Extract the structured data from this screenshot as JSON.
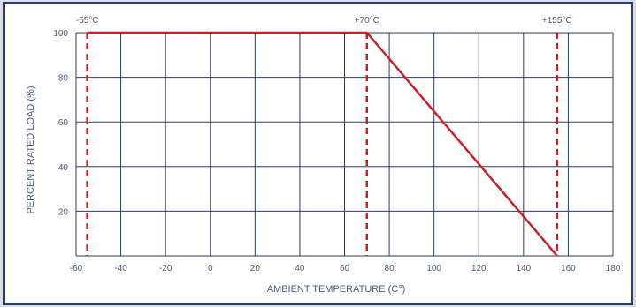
{
  "chart_data": {
    "type": "line",
    "title": "",
    "xlabel": "AMBIENT TEMPERATURE (C°)",
    "ylabel": "PERCENT RATED LOAD (%)",
    "xlim": [
      -60,
      180
    ],
    "ylim": [
      0,
      100
    ],
    "x_ticks": [
      -60,
      -40,
      -20,
      0,
      20,
      40,
      60,
      80,
      100,
      120,
      140,
      160,
      180
    ],
    "y_ticks": [
      20,
      40,
      60,
      80,
      100
    ],
    "grid": true,
    "series": [
      {
        "color": "#c8202a",
        "points": [
          [
            -55,
            100
          ],
          [
            70,
            100
          ],
          [
            155,
            0
          ]
        ]
      }
    ],
    "markers": [
      {
        "x": -55,
        "label": "-55°C"
      },
      {
        "x": 70,
        "label": "+70°C"
      },
      {
        "x": 155,
        "label": "+155°C"
      }
    ],
    "colors": {
      "grid": "#2b3b63",
      "line": "#c8202a",
      "text": "#4a5a75",
      "frame": "#2b3b63",
      "background": "#d8dde5"
    }
  }
}
